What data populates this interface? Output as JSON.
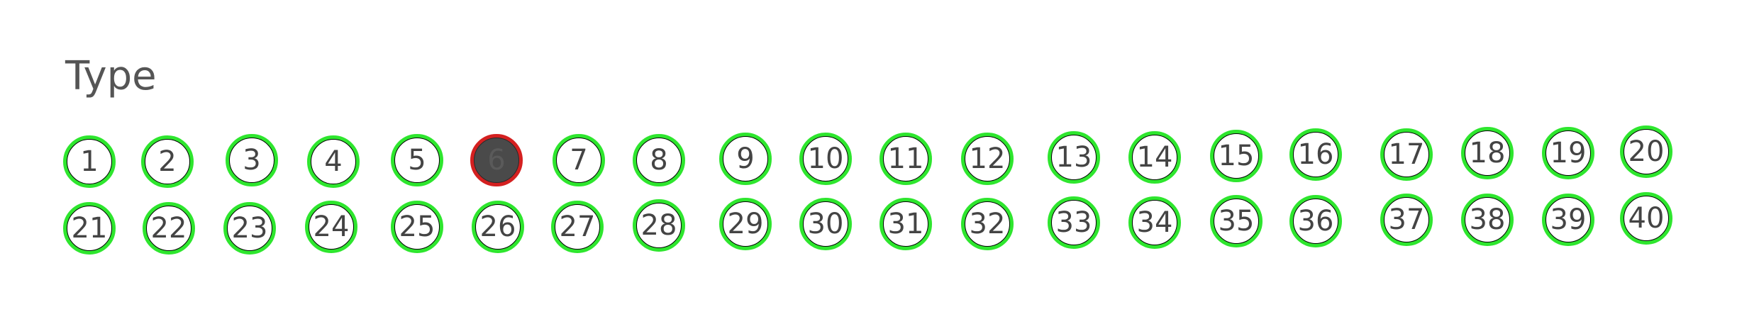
{
  "section": {
    "title": "Type"
  },
  "bubbles": [
    {
      "label": "1",
      "filled": false
    },
    {
      "label": "2",
      "filled": false
    },
    {
      "label": "3",
      "filled": false
    },
    {
      "label": "4",
      "filled": false
    },
    {
      "label": "5",
      "filled": false
    },
    {
      "label": "6",
      "filled": true
    },
    {
      "label": "7",
      "filled": false
    },
    {
      "label": "8",
      "filled": false
    },
    {
      "label": "9",
      "filled": false
    },
    {
      "label": "10",
      "filled": false
    },
    {
      "label": "11",
      "filled": false
    },
    {
      "label": "12",
      "filled": false
    },
    {
      "label": "13",
      "filled": false
    },
    {
      "label": "14",
      "filled": false
    },
    {
      "label": "15",
      "filled": false
    },
    {
      "label": "16",
      "filled": false
    },
    {
      "label": "17",
      "filled": false
    },
    {
      "label": "18",
      "filled": false
    },
    {
      "label": "19",
      "filled": false
    },
    {
      "label": "20",
      "filled": false
    },
    {
      "label": "21",
      "filled": false
    },
    {
      "label": "22",
      "filled": false
    },
    {
      "label": "23",
      "filled": false
    },
    {
      "label": "24",
      "filled": false
    },
    {
      "label": "25",
      "filled": false
    },
    {
      "label": "26",
      "filled": false
    },
    {
      "label": "27",
      "filled": false
    },
    {
      "label": "28",
      "filled": false
    },
    {
      "label": "29",
      "filled": false
    },
    {
      "label": "30",
      "filled": false
    },
    {
      "label": "31",
      "filled": false
    },
    {
      "label": "32",
      "filled": false
    },
    {
      "label": "33",
      "filled": false
    },
    {
      "label": "34",
      "filled": false
    },
    {
      "label": "35",
      "filled": false
    },
    {
      "label": "36",
      "filled": false
    },
    {
      "label": "37",
      "filled": false
    },
    {
      "label": "38",
      "filled": false
    },
    {
      "label": "39",
      "filled": false
    },
    {
      "label": "40",
      "filled": false
    }
  ],
  "colors": {
    "detected_ring": "#2ee62e",
    "selected_ring": "#d42020",
    "fill": "#4a4a4a"
  }
}
